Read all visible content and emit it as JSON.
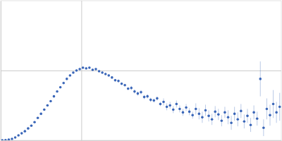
{
  "chart_data": {
    "type": "scatter",
    "color": "#3a66b8",
    "marker": "circle",
    "grid": true,
    "tick_labels": false,
    "xlim": [
      0,
      3.48
    ],
    "ylim": [
      0,
      2
    ],
    "xticks": [
      1
    ],
    "yticks": [
      1
    ],
    "x": [
      0.02,
      0.06,
      0.1,
      0.14,
      0.18,
      0.22,
      0.26,
      0.3,
      0.34,
      0.38,
      0.42,
      0.46,
      0.5,
      0.54,
      0.58,
      0.62,
      0.66,
      0.7,
      0.74,
      0.78,
      0.82,
      0.86,
      0.9,
      0.94,
      0.98,
      1.02,
      1.06,
      1.1,
      1.14,
      1.18,
      1.22,
      1.26,
      1.3,
      1.34,
      1.38,
      1.42,
      1.46,
      1.5,
      1.54,
      1.58,
      1.62,
      1.66,
      1.7,
      1.74,
      1.78,
      1.82,
      1.86,
      1.9,
      1.94,
      1.98,
      2.02,
      2.06,
      2.1,
      2.14,
      2.18,
      2.22,
      2.26,
      2.3,
      2.34,
      2.38,
      2.42,
      2.46,
      2.5,
      2.54,
      2.58,
      2.62,
      2.66,
      2.7,
      2.74,
      2.78,
      2.82,
      2.86,
      2.9,
      2.94,
      2.98,
      3.02,
      3.06,
      3.1,
      3.14,
      3.18,
      3.22,
      3.26,
      3.3,
      3.34,
      3.38,
      3.42,
      3.46
    ],
    "values": [
      0,
      0.003,
      0.01,
      0.02,
      0.04,
      0.07,
      0.1,
      0.13,
      0.17,
      0.21,
      0.26,
      0.32,
      0.38,
      0.44,
      0.5,
      0.56,
      0.63,
      0.7,
      0.76,
      0.82,
      0.88,
      0.93,
      0.97,
      1.0,
      1.02,
      1.04,
      1.03,
      1.04,
      1.01,
      1.02,
      0.99,
      0.97,
      0.95,
      0.93,
      0.9,
      0.86,
      0.85,
      0.81,
      0.79,
      0.74,
      0.75,
      0.7,
      0.67,
      0.69,
      0.62,
      0.63,
      0.58,
      0.57,
      0.6,
      0.52,
      0.55,
      0.48,
      0.5,
      0.44,
      0.52,
      0.45,
      0.4,
      0.47,
      0.41,
      0.36,
      0.45,
      0.38,
      0.33,
      0.43,
      0.35,
      0.3,
      0.41,
      0.37,
      0.28,
      0.4,
      0.33,
      0.25,
      0.38,
      0.3,
      0.42,
      0.27,
      0.35,
      0.22,
      0.4,
      0.31,
      0.88,
      0.18,
      0.45,
      0.36,
      0.52,
      0.4,
      0.48
    ],
    "errors": [
      0.002,
      0.002,
      0.002,
      0.002,
      0.002,
      0.002,
      0.002,
      0.002,
      0.002,
      0.002,
      0.005,
      0.005,
      0.005,
      0.005,
      0.005,
      0.005,
      0.005,
      0.005,
      0.005,
      0.005,
      0.008,
      0.008,
      0.008,
      0.008,
      0.008,
      0.008,
      0.008,
      0.008,
      0.008,
      0.008,
      0.015,
      0.015,
      0.015,
      0.015,
      0.015,
      0.015,
      0.015,
      0.015,
      0.015,
      0.015,
      0.03,
      0.03,
      0.03,
      0.03,
      0.03,
      0.03,
      0.03,
      0.03,
      0.03,
      0.03,
      0.05,
      0.05,
      0.05,
      0.05,
      0.05,
      0.05,
      0.05,
      0.05,
      0.05,
      0.05,
      0.08,
      0.08,
      0.08,
      0.08,
      0.08,
      0.08,
      0.08,
      0.08,
      0.08,
      0.08,
      0.1,
      0.1,
      0.1,
      0.1,
      0.1,
      0.1,
      0.1,
      0.1,
      0.1,
      0.1,
      0.25,
      0.12,
      0.15,
      0.15,
      0.2,
      0.15,
      0.2
    ]
  }
}
